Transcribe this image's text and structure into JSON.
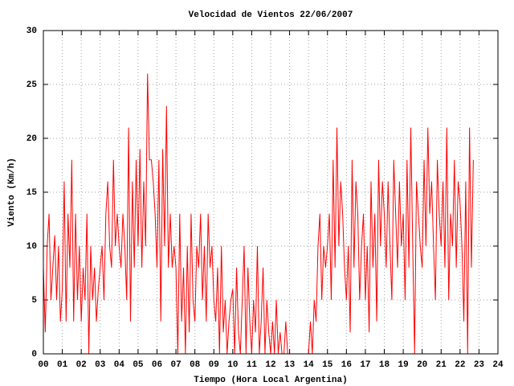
{
  "chart_data": {
    "type": "line",
    "title": "Velocidad de Vientos 22/06/2007",
    "xlabel": "Tiempo (Hora Local Argentina)",
    "ylabel": "Viento (Km/h)",
    "xlim": [
      0,
      24
    ],
    "ylim": [
      0,
      30
    ],
    "xticks": [
      {
        "value": 0,
        "label": "00"
      },
      {
        "value": 1,
        "label": "01"
      },
      {
        "value": 2,
        "label": "02"
      },
      {
        "value": 3,
        "label": "03"
      },
      {
        "value": 4,
        "label": "04"
      },
      {
        "value": 5,
        "label": "05"
      },
      {
        "value": 6,
        "label": "06"
      },
      {
        "value": 7,
        "label": "07"
      },
      {
        "value": 8,
        "label": "08"
      },
      {
        "value": 9,
        "label": "09"
      },
      10,
      11,
      12,
      13,
      14,
      15,
      16,
      17,
      18,
      19,
      20,
      21,
      22,
      23,
      24
    ],
    "yticks": [
      0,
      5,
      10,
      15,
      20,
      25,
      30
    ],
    "grid": true,
    "x": [
      0,
      0.1,
      0.2,
      0.3,
      0.4,
      0.5,
      0.6,
      0.7,
      0.8,
      0.9,
      1,
      1.1,
      1.2,
      1.3,
      1.4,
      1.5,
      1.6,
      1.7,
      1.8,
      1.9,
      2,
      2.1,
      2.2,
      2.3,
      2.4,
      2.5,
      2.6,
      2.7,
      2.8,
      2.9,
      3,
      3.1,
      3.2,
      3.3,
      3.4,
      3.5,
      3.6,
      3.7,
      3.8,
      3.9,
      4,
      4.1,
      4.2,
      4.3,
      4.4,
      4.5,
      4.6,
      4.7,
      4.8,
      4.9,
      5,
      5.1,
      5.2,
      5.3,
      5.4,
      5.5,
      5.6,
      5.7,
      5.8,
      5.9,
      6,
      6.1,
      6.2,
      6.3,
      6.4,
      6.5,
      6.6,
      6.7,
      6.8,
      6.9,
      7,
      7.1,
      7.2,
      7.3,
      7.4,
      7.5,
      7.6,
      7.7,
      7.8,
      7.9,
      8,
      8.1,
      8.2,
      8.3,
      8.4,
      8.5,
      8.6,
      8.7,
      8.8,
      8.9,
      9,
      9.1,
      9.2,
      9.3,
      9.4,
      9.5,
      9.6,
      9.7,
      9.8,
      9.9,
      10,
      10.1,
      10.2,
      10.3,
      10.4,
      10.5,
      10.6,
      10.7,
      10.8,
      10.9,
      11,
      11.1,
      11.2,
      11.3,
      11.4,
      11.5,
      11.6,
      11.7,
      11.8,
      11.9,
      12,
      12.1,
      12.2,
      12.3,
      12.4,
      12.5,
      12.6,
      12.7,
      12.8,
      12.9,
      13,
      13.1,
      13.2,
      13.3,
      13.4,
      13.5,
      13.6,
      13.7,
      13.8,
      13.9,
      14,
      14.1,
      14.2,
      14.3,
      14.4,
      14.5,
      14.6,
      14.7,
      14.8,
      14.9,
      15,
      15.1,
      15.2,
      15.3,
      15.4,
      15.5,
      15.6,
      15.7,
      15.8,
      15.9,
      16,
      16.1,
      16.2,
      16.3,
      16.4,
      16.5,
      16.6,
      16.7,
      16.8,
      16.9,
      17,
      17.1,
      17.2,
      17.3,
      17.4,
      17.5,
      17.6,
      17.7,
      17.8,
      17.9,
      18,
      18.1,
      18.2,
      18.3,
      18.4,
      18.5,
      18.6,
      18.7,
      18.8,
      18.9,
      19,
      19.1,
      19.2,
      19.3,
      19.4,
      19.5,
      19.6,
      19.7,
      19.8,
      19.9,
      20,
      20.1,
      20.2,
      20.3,
      20.4,
      20.5,
      20.6,
      20.7,
      20.8,
      20.9,
      21,
      21.1,
      21.2,
      21.3,
      21.4,
      21.5,
      21.6,
      21.7,
      21.8,
      21.9,
      22,
      22.1,
      22.2,
      22.3,
      22.4,
      22.5,
      22.6,
      22.7
    ],
    "series": [
      {
        "color": "#ff0000",
        "values": [
          8,
          2,
          10,
          13,
          5,
          8,
          11,
          5,
          10,
          3,
          6,
          16,
          3,
          13,
          8,
          18,
          3,
          13,
          5,
          10,
          3,
          8,
          5,
          13,
          0,
          10,
          5,
          8,
          3,
          6,
          8,
          10,
          5,
          13,
          16,
          10,
          8,
          18,
          10,
          13,
          10,
          8,
          13,
          10,
          5,
          21,
          3,
          16,
          8,
          18,
          10,
          19,
          8,
          16,
          10,
          26,
          18,
          18,
          16,
          13,
          8,
          18,
          3,
          19,
          10,
          23,
          8,
          13,
          8,
          10,
          8,
          0,
          13,
          3,
          8,
          0,
          10,
          2,
          13,
          5,
          3,
          10,
          8,
          13,
          5,
          10,
          3,
          13,
          8,
          10,
          5,
          3,
          8,
          0,
          10,
          2,
          5,
          0,
          3,
          5,
          6,
          0,
          8,
          2,
          0,
          5,
          10,
          0,
          8,
          3,
          0,
          5,
          2,
          10,
          0,
          3,
          8,
          0,
          5,
          2,
          0,
          3,
          0,
          5,
          0,
          2,
          0,
          0,
          3,
          0,
          0,
          0,
          0,
          0,
          0,
          0,
          0,
          0,
          0,
          0,
          0,
          3,
          0,
          5,
          3,
          10,
          13,
          5,
          10,
          8,
          10,
          13,
          5,
          18,
          8,
          21,
          10,
          16,
          13,
          8,
          5,
          10,
          2,
          18,
          8,
          16,
          13,
          5,
          10,
          13,
          5,
          10,
          2,
          16,
          8,
          13,
          3,
          18,
          10,
          16,
          13,
          8,
          16,
          10,
          5,
          18,
          13,
          8,
          16,
          10,
          13,
          5,
          18,
          8,
          21,
          10,
          0,
          16,
          13,
          10,
          8,
          18,
          10,
          21,
          13,
          16,
          10,
          5,
          18,
          13,
          10,
          16,
          8,
          21,
          5,
          13,
          10,
          18,
          8,
          16,
          14,
          10,
          3,
          16,
          0,
          21,
          8,
          18
        ]
      }
    ]
  }
}
